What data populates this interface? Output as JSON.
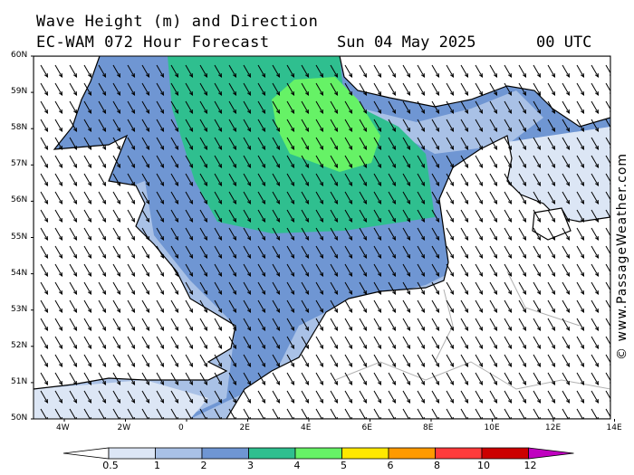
{
  "header": {
    "title_line1": "Wave Height (m) and Direction",
    "title_line2": "EC-WAM 072 Hour Forecast",
    "date": "Sun 04 May 2025",
    "time": "00 UTC"
  },
  "watermark": "© www.PassageWeather.com",
  "map": {
    "lat_labels": [
      "60N",
      "59N",
      "58N",
      "57N",
      "56N",
      "55N",
      "54N",
      "53N",
      "52N",
      "51N",
      "50N"
    ],
    "lon_labels": [
      "4W",
      "2W",
      "0",
      "2E",
      "4E",
      "6E",
      "8E",
      "10E",
      "12E",
      "14E"
    ],
    "arrow_direction_deg": 150
  },
  "legend": {
    "labels": [
      "0.5",
      "1",
      "2",
      "3",
      "4",
      "5",
      "6",
      "8",
      "10",
      "12"
    ],
    "colors": [
      "#dce6f5",
      "#a9c1e6",
      "#6f96d3",
      "#2fbf8f",
      "#66f266",
      "#ffe800",
      "#ff9a00",
      "#ff3b3b",
      "#cc0000",
      "#c000c0"
    ]
  },
  "colors": {
    "land": "#ffffff",
    "coast": "#000000",
    "border": "#b0b0b0"
  }
}
